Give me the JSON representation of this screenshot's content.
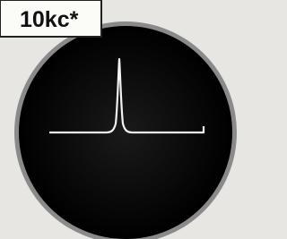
{
  "label": "10kc*"
}
